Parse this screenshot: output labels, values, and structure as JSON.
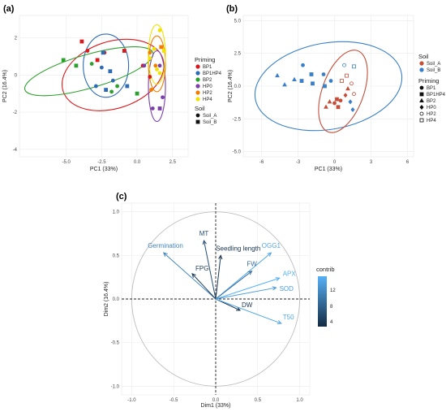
{
  "colors": {
    "BP1": "#d7191c",
    "BP1HP4": "#2c6bb5",
    "BP2": "#2ca02c",
    "HP0": "#7b3fa8",
    "HP2": "#f07d00",
    "HP4": "#f2e200",
    "Soil_A": "#c44e3a",
    "Soil_B": "#3a80c9",
    "arrow_low": "#132b43",
    "arrow_high": "#56b1f7",
    "circle": "#bdbdbd"
  },
  "chart_data": [
    {
      "panel": "(a)",
      "type": "scatter",
      "xlabel": "PC1 (33%)",
      "ylabel": "PC2 (16.4%)",
      "xlim": [
        -8.3,
        3.6
      ],
      "ylim": [
        -4.4,
        3.2
      ],
      "xticks": [
        "-5.0",
        "-2.5",
        "0.0",
        "2.5"
      ],
      "yticks": [
        "2",
        "0",
        "-2",
        "-4"
      ],
      "legend": {
        "priming_title": "Priming",
        "priming": [
          "BP1",
          "BP1HP4",
          "BP2",
          "HP0",
          "HP2",
          "HP4"
        ],
        "soil_title": "Soil",
        "soil": [
          "Soil_A",
          "Soil_B"
        ]
      },
      "points": [
        {
          "x": -3.9,
          "y": 1.8,
          "g": "BP1",
          "s": "Soil_B"
        },
        {
          "x": -3.5,
          "y": 1.3,
          "g": "BP1",
          "s": "Soil_A"
        },
        {
          "x": -2.8,
          "y": 0.8,
          "g": "BP1",
          "s": "Soil_B"
        },
        {
          "x": -0.9,
          "y": 1.3,
          "g": "BP1",
          "s": "Soil_B"
        },
        {
          "x": 0.4,
          "y": 0.5,
          "g": "BP1",
          "s": "Soil_A"
        },
        {
          "x": 0.9,
          "y": -0.1,
          "g": "BP1",
          "s": "Soil_A"
        },
        {
          "x": -2.3,
          "y": 1.2,
          "g": "BP1",
          "s": "Soil_A"
        },
        {
          "x": -2.4,
          "y": 1.2,
          "g": "BP1HP4",
          "s": "Soil_B"
        },
        {
          "x": -2.5,
          "y": 0.4,
          "g": "BP1HP4",
          "s": "Soil_A"
        },
        {
          "x": -1.9,
          "y": 0.2,
          "g": "BP1HP4",
          "s": "Soil_B"
        },
        {
          "x": -1.7,
          "y": -0.3,
          "g": "BP1HP4",
          "s": "Soil_A"
        },
        {
          "x": -2.9,
          "y": -0.6,
          "g": "BP1HP4",
          "s": "Soil_A"
        },
        {
          "x": -2.2,
          "y": -0.8,
          "g": "BP1HP4",
          "s": "Soil_B"
        },
        {
          "x": -0.7,
          "y": -0.6,
          "g": "BP1HP4",
          "s": "Soil_B"
        },
        {
          "x": -5.2,
          "y": 0.8,
          "g": "BP2",
          "s": "Soil_B"
        },
        {
          "x": -4.3,
          "y": 0.5,
          "g": "BP2",
          "s": "Soil_B"
        },
        {
          "x": -3.2,
          "y": 0.6,
          "g": "BP2",
          "s": "Soil_A"
        },
        {
          "x": -1.8,
          "y": -0.9,
          "g": "BP2",
          "s": "Soil_A"
        },
        {
          "x": -1.4,
          "y": -0.6,
          "g": "BP2",
          "s": "Soil_A"
        },
        {
          "x": 0.0,
          "y": -1.0,
          "g": "BP2",
          "s": "Soil_B"
        },
        {
          "x": 0.5,
          "y": 0.5,
          "g": "HP0",
          "s": "Soil_A"
        },
        {
          "x": 1.6,
          "y": 0.5,
          "g": "HP0",
          "s": "Soil_A"
        },
        {
          "x": 1.8,
          "y": -1.2,
          "g": "HP0",
          "s": "Soil_A"
        },
        {
          "x": 1.6,
          "y": -1.8,
          "g": "HP0",
          "s": "Soil_B"
        },
        {
          "x": 1.1,
          "y": -1.8,
          "g": "HP0",
          "s": "Soil_A"
        },
        {
          "x": 0.9,
          "y": 1.2,
          "g": "HP2",
          "s": "Soil_A"
        },
        {
          "x": 1.7,
          "y": 1.5,
          "g": "HP2",
          "s": "Soil_B"
        },
        {
          "x": 1.3,
          "y": 0.5,
          "g": "HP2",
          "s": "Soil_A"
        },
        {
          "x": 1.0,
          "y": -0.8,
          "g": "HP2",
          "s": "Soil_A"
        },
        {
          "x": 1.6,
          "y": 2.4,
          "g": "HP4",
          "s": "Soil_A"
        },
        {
          "x": 1.2,
          "y": 1.4,
          "g": "HP4",
          "s": "Soil_A"
        },
        {
          "x": 1.9,
          "y": 1.3,
          "g": "HP4",
          "s": "Soil_B"
        },
        {
          "x": 0.9,
          "y": 0.9,
          "g": "HP4",
          "s": "Soil_A"
        },
        {
          "x": 1.4,
          "y": 0.3,
          "g": "HP4",
          "s": "Soil_A"
        },
        {
          "x": 1.6,
          "y": 0.1,
          "g": "HP4",
          "s": "Soil_A"
        }
      ],
      "ellipses": [
        {
          "g": "BP1",
          "cx": -1.7,
          "cy": 0.0,
          "rx": 3.7,
          "ry": 1.8,
          "rot": -18
        },
        {
          "g": "BP1HP4",
          "cx": -2.2,
          "cy": 0.5,
          "rx": 1.6,
          "ry": 1.7,
          "rot": 0
        },
        {
          "g": "BP2",
          "cx": -3.4,
          "cy": 0.2,
          "rx": 4.7,
          "ry": 0.9,
          "rot": -16
        },
        {
          "g": "HP0",
          "cx": 1.4,
          "cy": -0.6,
          "rx": 0.6,
          "ry": 1.9,
          "rot": 0
        },
        {
          "g": "HP2",
          "cx": 1.4,
          "cy": 0.6,
          "rx": 0.6,
          "ry": 1.5,
          "rot": 0
        },
        {
          "g": "HP4",
          "cx": 1.4,
          "cy": 1.1,
          "rx": 0.6,
          "ry": 1.6,
          "rot": 0
        }
      ]
    },
    {
      "panel": "(b)",
      "type": "scatter",
      "xlabel": "PC1 (33%)",
      "ylabel": "PC2 (16.4%)",
      "xlim": [
        -7.5,
        6.5
      ],
      "ylim": [
        -5.4,
        5.4
      ],
      "xticks": [
        "-6",
        "-3",
        "0",
        "3",
        "6"
      ],
      "yticks": [
        "5.0",
        "2.5",
        "0.0",
        "-2.5",
        "-5.0"
      ],
      "legend": {
        "soil_title": "Soil",
        "soil": [
          "Soil_A",
          "Soil_B"
        ],
        "priming_title": "Priming",
        "priming": [
          "BP1",
          "BP1HP4",
          "BP2",
          "HP0",
          "HP2",
          "HP4"
        ]
      },
      "points": [
        {
          "x": -4.7,
          "y": 0.8,
          "s": "Soil_B",
          "p": "BP2"
        },
        {
          "x": -3.3,
          "y": 0.5,
          "s": "Soil_B",
          "p": "BP2"
        },
        {
          "x": -4.1,
          "y": 0.1,
          "s": "Soil_B",
          "p": "BP2"
        },
        {
          "x": -2.7,
          "y": 0.4,
          "s": "Soil_B",
          "p": "BP1HP4"
        },
        {
          "x": -2.6,
          "y": 1.6,
          "s": "Soil_B",
          "p": "BP1"
        },
        {
          "x": -1.9,
          "y": 0.9,
          "s": "Soil_B",
          "p": "BP1HP4"
        },
        {
          "x": -1.8,
          "y": 0.2,
          "s": "Soil_B",
          "p": "BP1HP4"
        },
        {
          "x": -0.9,
          "y": 0.9,
          "s": "Soil_B",
          "p": "BP1"
        },
        {
          "x": -0.8,
          "y": 0.0,
          "s": "Soil_B",
          "p": "BP1HP4"
        },
        {
          "x": -0.3,
          "y": 0.4,
          "s": "Soil_B",
          "p": "BP1"
        },
        {
          "x": 0.8,
          "y": 1.6,
          "s": "Soil_B",
          "p": "HP2"
        },
        {
          "x": 1.6,
          "y": 1.5,
          "s": "Soil_B",
          "p": "HP4"
        },
        {
          "x": 1.3,
          "y": -1.2,
          "s": "Soil_B",
          "p": "HP0"
        },
        {
          "x": 1.5,
          "y": -1.8,
          "s": "Soil_B",
          "p": "HP0"
        },
        {
          "x": -0.4,
          "y": -1.2,
          "s": "Soil_A",
          "p": "BP2"
        },
        {
          "x": 0.0,
          "y": -1.3,
          "s": "Soil_A",
          "p": "BP1"
        },
        {
          "x": 0.2,
          "y": -1.0,
          "s": "Soil_A",
          "p": "BP1HP4"
        },
        {
          "x": 0.5,
          "y": -1.1,
          "s": "Soil_A",
          "p": "BP1"
        },
        {
          "x": -0.7,
          "y": -1.6,
          "s": "Soil_A",
          "p": "BP2"
        },
        {
          "x": 0.3,
          "y": -1.6,
          "s": "Soil_A",
          "p": "BP1HP4"
        },
        {
          "x": 0.9,
          "y": -0.7,
          "s": "Soil_A",
          "p": "HP0"
        },
        {
          "x": 1.4,
          "y": 0.2,
          "s": "Soil_A",
          "p": "HP2"
        },
        {
          "x": 0.6,
          "y": 0.4,
          "s": "Soil_A",
          "p": "HP4"
        },
        {
          "x": 1.0,
          "y": 0.8,
          "s": "Soil_A",
          "p": "HP4"
        },
        {
          "x": 1.6,
          "y": -0.6,
          "s": "Soil_A",
          "p": "HP2"
        },
        {
          "x": 1.1,
          "y": -0.2,
          "s": "Soil_A",
          "p": "BP2"
        }
      ],
      "ellipses": [
        {
          "s": "Soil_B",
          "cx": -0.5,
          "cy": 0.0,
          "rx": 6.1,
          "ry": 3.3,
          "rot": -10
        },
        {
          "s": "Soil_A",
          "cx": 0.7,
          "cy": -0.4,
          "rx": 1.7,
          "ry": 3.3,
          "rot": 20
        }
      ]
    },
    {
      "panel": "(c)",
      "type": "biplot",
      "xlabel": "Dim1 (33%)",
      "ylabel": "Dim2 (16.4%)",
      "xlim": [
        -1.12,
        1.12
      ],
      "ylim": [
        -1.1,
        1.1
      ],
      "xticks": [
        "-1.0",
        "-0.5",
        "0.0",
        "0.5",
        "1.0"
      ],
      "yticks": [
        "1.0",
        "0.5",
        "0.0",
        "-0.5",
        "-1.0"
      ],
      "legend": {
        "title": "contrib",
        "ticks": [
          "12",
          "8",
          "4"
        ]
      },
      "variables": [
        {
          "name": "Germination",
          "x": -0.62,
          "y": 0.53,
          "contrib": 10
        },
        {
          "name": "MT",
          "x": -0.14,
          "y": 0.67,
          "contrib": 5
        },
        {
          "name": "FPG",
          "x": -0.28,
          "y": 0.29,
          "contrib": 3.5
        },
        {
          "name": "Seedling length",
          "x": 0.06,
          "y": 0.5,
          "contrib": 3
        },
        {
          "name": "OGG1",
          "x": 0.66,
          "y": 0.53,
          "contrib": 13
        },
        {
          "name": "FW",
          "x": 0.43,
          "y": 0.32,
          "contrib": 8
        },
        {
          "name": "APX",
          "x": 0.76,
          "y": 0.24,
          "contrib": 14
        },
        {
          "name": "SOD",
          "x": 0.72,
          "y": 0.13,
          "contrib": 12
        },
        {
          "name": "DW",
          "x": 0.29,
          "y": -0.13,
          "contrib": 3
        },
        {
          "name": "T50",
          "x": 0.78,
          "y": -0.28,
          "contrib": 13
        }
      ]
    }
  ]
}
